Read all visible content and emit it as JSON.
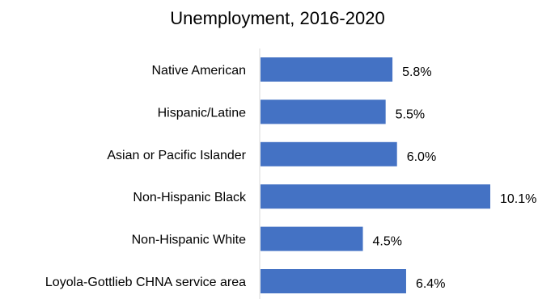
{
  "chart_data": {
    "type": "bar",
    "orientation": "horizontal",
    "title": "Unemployment, 2016-2020",
    "xlabel": "",
    "ylabel": "",
    "categories": [
      "Native American",
      "Hispanic/Latine",
      "Asian or Pacific Islander",
      "Non-Hispanic Black",
      "Non-Hispanic White",
      "Loyola-Gottlieb CHNA service area"
    ],
    "values": [
      5.8,
      5.5,
      6.0,
      10.1,
      4.5,
      6.4
    ],
    "value_labels": [
      "5.8%",
      "5.5%",
      "6.0%",
      "10.1%",
      "4.5%",
      "6.4%"
    ],
    "xlim": [
      0,
      10.1
    ],
    "grid": false,
    "legend": "none",
    "bar_color": "#4472C4",
    "axis_color": "#D9D9D9"
  }
}
